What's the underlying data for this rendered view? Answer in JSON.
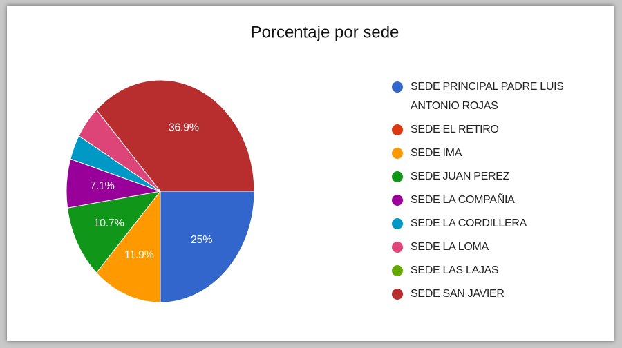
{
  "chart_data": {
    "type": "pie",
    "title": "Porcentaje por sede",
    "categories": [
      "SEDE PRINCIPAL PADRE LUIS ANTONIO ROJAS",
      "SEDE EL RETIRO",
      "SEDE IMA",
      "SEDE JUAN PEREZ",
      "SEDE LA COMPAÑIA",
      "SEDE LA CORDILLERA",
      "SEDE LA LOMA",
      "SEDE LAS LAJAS",
      "SEDE SAN JAVIER"
    ],
    "values": [
      25,
      0,
      11.9,
      10.7,
      7.1,
      3.6,
      4.8,
      0,
      36.9
    ],
    "value_labels": [
      "25%",
      null,
      "11.9%",
      "10.7%",
      "7.1%",
      null,
      null,
      null,
      "36.9%"
    ],
    "colors": [
      "#3366cc",
      "#dc3912",
      "#ff9900",
      "#109618",
      "#990099",
      "#0099c6",
      "#dd4477",
      "#66aa00",
      "#b82e2e"
    ],
    "legend": "right"
  }
}
